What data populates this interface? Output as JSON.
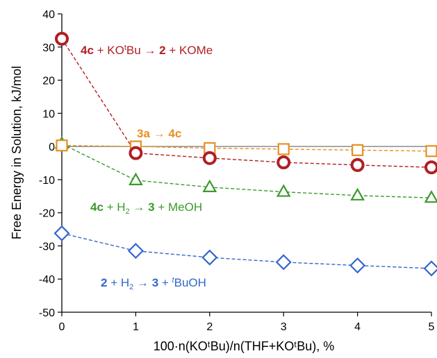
{
  "chart_data": {
    "type": "line",
    "xlabel": "100·n(KOᵗBu)/n(THF+KOᵗBu), %",
    "ylabel": "Free Energy in Solution, kJ/mol",
    "xlim": [
      0,
      5
    ],
    "ylim": [
      -50,
      40
    ],
    "x_ticks": [
      0,
      1,
      2,
      3,
      4,
      5
    ],
    "y_ticks": [
      40,
      30,
      20,
      10,
      0,
      -10,
      -20,
      -30,
      -40,
      -50
    ],
    "grid": false,
    "x": [
      0,
      1,
      2,
      3,
      4,
      5
    ],
    "series": [
      {
        "name": "3a → 4c",
        "label_parts": [
          {
            "t": "3a",
            "w": "bold"
          },
          {
            "t": " → ",
            "w": "normal"
          },
          {
            "t": "4c",
            "w": "bold"
          }
        ],
        "marker": "square",
        "color": "#e8901e",
        "values": [
          0.3,
          0,
          -0.5,
          -0.8,
          -1.1,
          -1.4
        ]
      },
      {
        "name": "4c + KOᵗBu → 2 + KOMe",
        "label_parts": [
          {
            "t": "4c",
            "w": "bold"
          },
          {
            "t": " + KO",
            "w": "normal"
          },
          {
            "t": "t",
            "w": "normal",
            "s": "sup"
          },
          {
            "t": "Bu → ",
            "w": "normal"
          },
          {
            "t": "2",
            "w": "bold"
          },
          {
            "t": " + KOMe",
            "w": "normal"
          }
        ],
        "marker": "circle",
        "color": "#b01f24",
        "values": [
          32.5,
          -2,
          -3.5,
          -4.8,
          -5.6,
          -6.3
        ]
      },
      {
        "name": "4c + H₂ → 3 + MeOH",
        "label_parts": [
          {
            "t": "4c",
            "w": "bold"
          },
          {
            "t": " + H",
            "w": "normal"
          },
          {
            "t": "2",
            "w": "normal",
            "s": "sub"
          },
          {
            "t": " → ",
            "w": "normal"
          },
          {
            "t": "3",
            "w": "bold"
          },
          {
            "t": " + MeOH",
            "w": "normal"
          }
        ],
        "marker": "triangle",
        "color": "#3b9a2c",
        "values": [
          0.8,
          -10.2,
          -12.3,
          -13.7,
          -14.8,
          -15.5
        ]
      },
      {
        "name": "2 + H₂ → 3 + ᵗBuOH",
        "label_parts": [
          {
            "t": "2",
            "w": "bold"
          },
          {
            "t": " + H",
            "w": "normal"
          },
          {
            "t": "2",
            "w": "normal",
            "s": "sub"
          },
          {
            "t": " → ",
            "w": "normal"
          },
          {
            "t": "3",
            "w": "bold"
          },
          {
            "t": " + ",
            "w": "normal"
          },
          {
            "t": "t",
            "w": "normal",
            "s": "sup",
            "i": true
          },
          {
            "t": "BuOH",
            "w": "normal"
          }
        ],
        "marker": "diamond",
        "color": "#3366cc",
        "values": [
          -26.2,
          -31.5,
          -33.5,
          -34.9,
          -35.9,
          -36.8
        ]
      }
    ]
  }
}
